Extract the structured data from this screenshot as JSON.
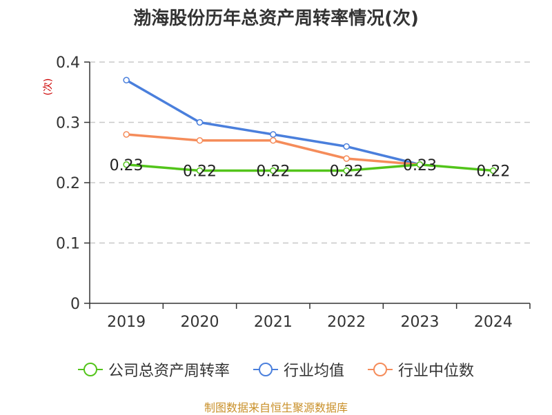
{
  "chart_data": {
    "type": "line",
    "title": "渤海股份历年总资产周转率情况(次)",
    "ylabel": "(次)",
    "categories": [
      "2019",
      "2020",
      "2021",
      "2022",
      "2023",
      "2024"
    ],
    "ylim": [
      0,
      0.4
    ],
    "yticks": [
      "0",
      "0.1",
      "0.2",
      "0.3",
      "0.4"
    ],
    "grid": true,
    "legend_position": "bottom",
    "series": [
      {
        "name": "公司总资产周转率",
        "color": "#52c41a",
        "values": [
          0.23,
          0.22,
          0.22,
          0.22,
          0.23,
          0.22
        ],
        "labels": [
          "0.23",
          "0.22",
          "0.22",
          "0.22",
          "0.23",
          "0.22"
        ]
      },
      {
        "name": "行业均值",
        "color": "#4a7fdc",
        "values": [
          0.37,
          0.3,
          0.28,
          0.26,
          0.23,
          null
        ]
      },
      {
        "name": "行业中位数",
        "color": "#f58c5a",
        "values": [
          0.28,
          0.27,
          0.27,
          0.24,
          0.23,
          null
        ]
      }
    ],
    "source": "制图数据来自恒生聚源数据库"
  }
}
